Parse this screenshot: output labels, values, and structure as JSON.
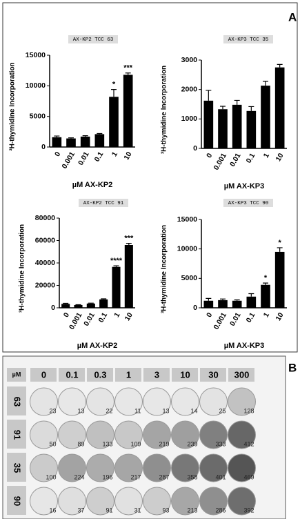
{
  "panel_labels": [
    "A",
    "B"
  ],
  "chart_data": [
    {
      "type": "bar",
      "title": "AX-KP2 TCC 63",
      "ylabel": "³H-thymidine Incorporation",
      "xlabel": "µM AX-KP2",
      "categories": [
        "0",
        "0.001",
        "0.01",
        "0.1",
        "1",
        "10"
      ],
      "values": [
        1600,
        1400,
        1700,
        2100,
        8200,
        11800
      ],
      "errors": [
        200,
        100,
        150,
        100,
        1200,
        300
      ],
      "value_annotations": [
        null,
        null,
        null,
        null,
        "*",
        "***"
      ],
      "color": "#000000",
      "ylim": [
        0,
        15000
      ],
      "yticks": [
        0,
        5000,
        10000,
        15000
      ]
    },
    {
      "type": "bar",
      "title": "AX-KP3 TCC 35",
      "ylabel": "³H-thymidine Incorporation",
      "xlabel": "µM AX-KP3",
      "categories": [
        "0",
        "0.001",
        "0.01",
        "0.1",
        "1",
        "10"
      ],
      "values": [
        1620,
        1330,
        1480,
        1270,
        2130,
        2750
      ],
      "errors": [
        350,
        100,
        150,
        150,
        150,
        100
      ],
      "value_annotations": [
        null,
        null,
        null,
        null,
        null,
        null
      ],
      "color": "#000000",
      "ylim": [
        0,
        3000
      ],
      "yticks": [
        0,
        1000,
        2000,
        3000
      ]
    },
    {
      "type": "bar",
      "title": "AX-KP2 TCC 91",
      "ylabel": "³H-thymidine Incorporation",
      "xlabel": "µM AX-KP2",
      "categories": [
        "0",
        "0.001",
        "0.01",
        "0.1",
        "1",
        "10"
      ],
      "values": [
        3500,
        2500,
        3800,
        7500,
        36500,
        56000
      ],
      "errors": [
        500,
        300,
        400,
        500,
        1000,
        1500
      ],
      "value_annotations": [
        null,
        null,
        null,
        null,
        "****",
        "***"
      ],
      "color": "#000000",
      "ylim": [
        0,
        80000
      ],
      "yticks": [
        0,
        20000,
        40000,
        60000,
        80000
      ]
    },
    {
      "type": "bar",
      "title": "AX-KP3 TCC 90",
      "ylabel": "³H-thymidine Incorporation",
      "xlabel": "µM AX-KP3",
      "categories": [
        "0",
        "0.001",
        "0.01",
        "0.1",
        "1",
        "10"
      ],
      "values": [
        1200,
        1300,
        1200,
        1900,
        3900,
        9500
      ],
      "errors": [
        400,
        200,
        150,
        500,
        300,
        700
      ],
      "value_annotations": [
        null,
        null,
        null,
        null,
        "*",
        "*"
      ],
      "color": "#000000",
      "ylim": [
        0,
        15000
      ],
      "yticks": [
        0,
        5000,
        10000,
        15000
      ]
    }
  ],
  "plate": {
    "unit_label": "µM",
    "columns": [
      "0",
      "0.1",
      "0.3",
      "1",
      "3",
      "10",
      "30",
      "300"
    ],
    "rows": [
      {
        "label": "63",
        "counts": [
          "23",
          "13",
          "22",
          "11",
          "13",
          "14",
          "25",
          "128"
        ]
      },
      {
        "label": "91",
        "counts": [
          "50",
          "89",
          "133",
          "109",
          "219",
          "239",
          "333",
          "412"
        ]
      },
      {
        "label": "35",
        "counts": [
          "100",
          "224",
          "196",
          "217",
          "287",
          "358",
          "401",
          "469"
        ]
      },
      {
        "label": "90",
        "counts": [
          "16",
          "37",
          "91",
          "31",
          "93",
          "213",
          "286",
          "392"
        ]
      }
    ]
  }
}
